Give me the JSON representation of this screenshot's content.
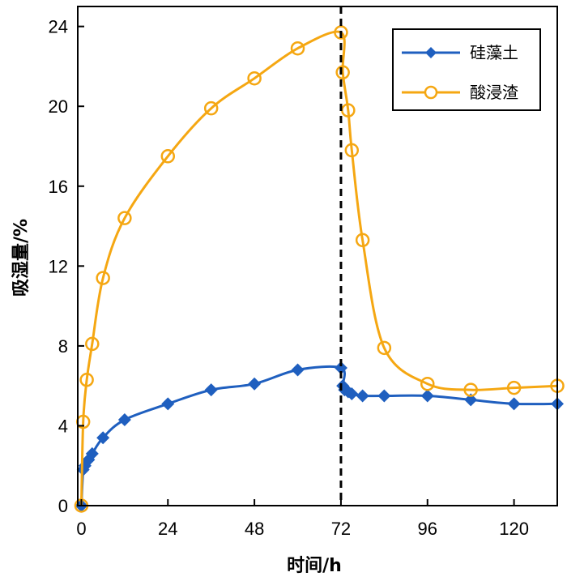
{
  "chart_data": {
    "type": "line",
    "title": "",
    "xlabel": "时间/h",
    "ylabel": "吸湿量/%",
    "xlim": [
      -1,
      132
    ],
    "ylim": [
      0,
      25
    ],
    "xticks": [
      0,
      24,
      48,
      72,
      96,
      120
    ],
    "yticks": [
      0,
      4,
      8,
      12,
      16,
      20,
      24
    ],
    "grid": false,
    "legend_position": "top-right",
    "vline_x": 72,
    "series": [
      {
        "name": "硅藻土",
        "color": "#1f5fbf",
        "marker": "diamond",
        "x": [
          0,
          0.5,
          1,
          2,
          3,
          6,
          12,
          24,
          36,
          48,
          60,
          72,
          72.5,
          73,
          74,
          75,
          78,
          84,
          96,
          108,
          120,
          132
        ],
        "y": [
          0,
          1.8,
          2.0,
          2.3,
          2.6,
          3.4,
          4.3,
          5.1,
          5.8,
          6.1,
          6.8,
          6.9,
          6.0,
          5.8,
          5.7,
          5.6,
          5.5,
          5.5,
          5.5,
          5.3,
          5.1,
          5.1
        ]
      },
      {
        "name": "酸浸渣",
        "color": "#f5a712",
        "marker": "circle",
        "x": [
          0,
          0.5,
          1.5,
          3,
          6,
          12,
          24,
          36,
          48,
          60,
          72,
          72.5,
          74,
          75,
          78,
          84,
          96,
          108,
          120,
          132
        ],
        "y": [
          0,
          4.2,
          6.3,
          8.1,
          11.4,
          14.4,
          17.5,
          19.9,
          21.4,
          22.9,
          23.7,
          21.7,
          19.8,
          17.8,
          13.3,
          7.9,
          6.1,
          5.8,
          5.9,
          6.0
        ]
      }
    ]
  }
}
